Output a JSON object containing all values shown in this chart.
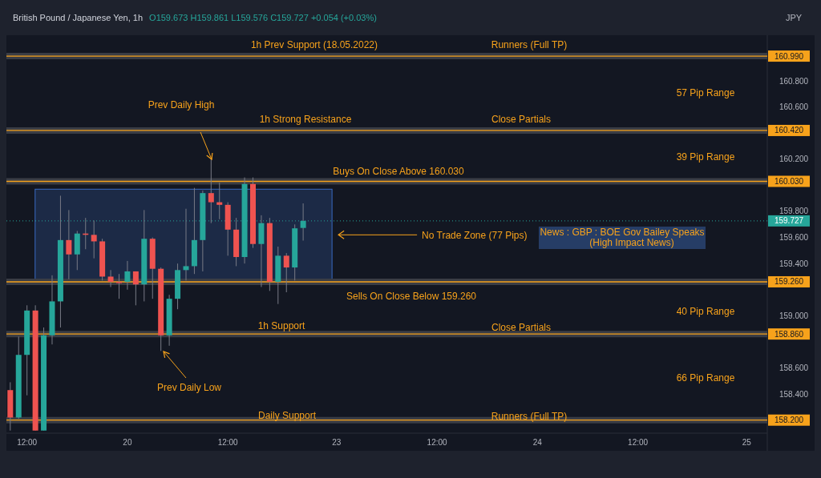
{
  "chart_data": {
    "type": "candlestick",
    "title": "British Pound / Japanese Yen, 1h",
    "subtitle": "O159.673 H159.861 L159.576 C159.727 +0.054 (+0.03%)",
    "ylabel": "JPY",
    "categories": [
      null,
      null,
      "12:00",
      null,
      null,
      null,
      null,
      null,
      null,
      null,
      null,
      null,
      null,
      null,
      "20",
      null,
      null,
      null,
      null,
      null,
      null,
      null,
      null,
      null,
      null,
      null,
      "12:00",
      null,
      null,
      null,
      null,
      null,
      null,
      null,
      null,
      null,
      null,
      null,
      null,
      "23",
      null,
      null,
      null,
      null,
      null,
      null,
      null,
      null,
      null,
      null,
      null,
      "12:00",
      null,
      null,
      null,
      null,
      null,
      null,
      null,
      null,
      null,
      null,
      null,
      "24",
      null,
      null,
      null,
      null,
      null,
      null,
      null,
      null,
      null,
      null,
      null,
      "12:00",
      null,
      null,
      null,
      null,
      null,
      null,
      null,
      null,
      null,
      null,
      null,
      null,
      "25",
      null,
      null
    ],
    "ohlc": [
      [
        158.43,
        158.49,
        158.12,
        158.22
      ],
      [
        158.22,
        158.84,
        158.21,
        158.7
      ],
      [
        158.7,
        159.08,
        158.39,
        159.04
      ],
      [
        159.04,
        159.08,
        158.12,
        158.12
      ],
      [
        158.12,
        158.91,
        158.12,
        158.85
      ],
      [
        158.85,
        159.31,
        158.78,
        159.11
      ],
      [
        159.11,
        159.92,
        158.91,
        159.58
      ],
      [
        159.58,
        159.81,
        159.28,
        159.47
      ],
      [
        159.47,
        159.65,
        159.35,
        159.63
      ],
      [
        159.63,
        159.75,
        159.51,
        159.62
      ],
      [
        159.62,
        159.73,
        159.44,
        159.57
      ],
      [
        159.57,
        159.59,
        159.27,
        159.3
      ],
      [
        159.3,
        159.35,
        159.22,
        159.26
      ],
      [
        159.26,
        159.32,
        159.13,
        159.25
      ],
      [
        159.26,
        159.42,
        159.2,
        159.34
      ],
      [
        159.34,
        159.34,
        159.08,
        159.24
      ],
      [
        159.24,
        159.81,
        159.11,
        159.59
      ],
      [
        159.59,
        159.6,
        159.13,
        159.36
      ],
      [
        159.36,
        159.37,
        158.73,
        158.85
      ],
      [
        158.85,
        159.16,
        158.77,
        159.13
      ],
      [
        159.13,
        159.4,
        159.05,
        159.35
      ],
      [
        159.35,
        159.82,
        159.27,
        159.38
      ],
      [
        159.38,
        159.98,
        159.32,
        159.58
      ],
      [
        159.58,
        159.96,
        159.34,
        159.94
      ],
      [
        159.94,
        160.2,
        159.71,
        159.87
      ],
      [
        159.87,
        160.02,
        159.74,
        159.85
      ],
      [
        159.85,
        159.87,
        159.46,
        159.66
      ],
      [
        159.66,
        159.75,
        159.38,
        159.45
      ],
      [
        159.45,
        160.06,
        159.4,
        160.01
      ],
      [
        160.01,
        160.06,
        159.52,
        159.55
      ],
      [
        159.55,
        159.77,
        159.22,
        159.71
      ],
      [
        159.71,
        159.75,
        159.19,
        159.26
      ],
      [
        159.26,
        159.53,
        159.09,
        159.46
      ],
      [
        159.46,
        159.48,
        159.18,
        159.37
      ],
      [
        159.37,
        159.7,
        159.27,
        159.67
      ],
      [
        159.673,
        159.861,
        159.576,
        159.727
      ],
      null,
      null,
      null,
      null,
      null,
      null,
      null,
      null,
      null,
      null,
      null,
      null,
      null,
      null,
      null,
      null,
      null,
      null,
      null,
      null,
      null,
      null,
      null,
      null,
      null,
      null,
      null,
      null,
      null,
      null,
      null,
      null,
      null,
      null,
      null,
      null,
      null,
      null,
      null,
      null,
      null,
      null,
      null,
      null,
      null,
      null,
      null,
      null,
      null,
      null,
      null,
      null,
      null,
      null,
      null
    ],
    "ylim": [
      158.1,
      161.15
    ],
    "yticks": [
      {
        "value": 158.4,
        "label": "158.400"
      },
      {
        "value": 158.6,
        "label": "158.600"
      },
      {
        "value": 159.0,
        "label": "159.000"
      },
      {
        "value": 159.4,
        "label": "159.400"
      },
      {
        "value": 159.6,
        "label": "159.600"
      },
      {
        "value": 159.8,
        "label": "159.800"
      },
      {
        "value": 160.2,
        "label": "160.200"
      },
      {
        "value": 160.6,
        "label": "160.600"
      },
      {
        "value": 160.8,
        "label": "160.800"
      }
    ],
    "ref_lines": [
      {
        "axis": "y",
        "value": 160.99,
        "label": "160.990",
        "color": "#f7a21b"
      },
      {
        "axis": "y",
        "value": 160.42,
        "label": "160.420",
        "color": "#f7a21b"
      },
      {
        "axis": "y",
        "value": 160.03,
        "label": "160.030",
        "color": "#f7a21b"
      },
      {
        "axis": "y",
        "value": 159.26,
        "label": "159.260",
        "color": "#f7a21b"
      },
      {
        "axis": "y",
        "value": 158.86,
        "label": "158.860",
        "color": "#f7a21b"
      },
      {
        "axis": "y",
        "value": 158.2,
        "label": "158.200",
        "color": "#f7a21b"
      },
      {
        "axis": "y",
        "value": 159.727,
        "label": "159.727",
        "color": "#26a69a",
        "line_style": "dotted"
      }
    ],
    "bands": [
      {
        "axis": "y",
        "from": 159.27,
        "to": 159.97,
        "label": "No Trade Zone (77 Pips)",
        "color": "#1e2c4a"
      }
    ],
    "annotations": [
      "1h Prev Support (18.05.2022)",
      "Runners (Full TP)",
      "1h Strong Resistance",
      "Close Partials",
      "Buys On Close Above 160.030",
      "Sells On Close Below 159.260",
      "1h Support",
      "Close Partials",
      "Daily Support",
      "Runners (Full TP)",
      "57 Pip Range",
      "39 Pip Range",
      "40 Pip Range",
      "66 Pip Range",
      "News : GBP : BOE Gov Bailey Speaks\n(High Impact News)",
      "Prev Daily High",
      "Prev Daily Low"
    ]
  }
}
